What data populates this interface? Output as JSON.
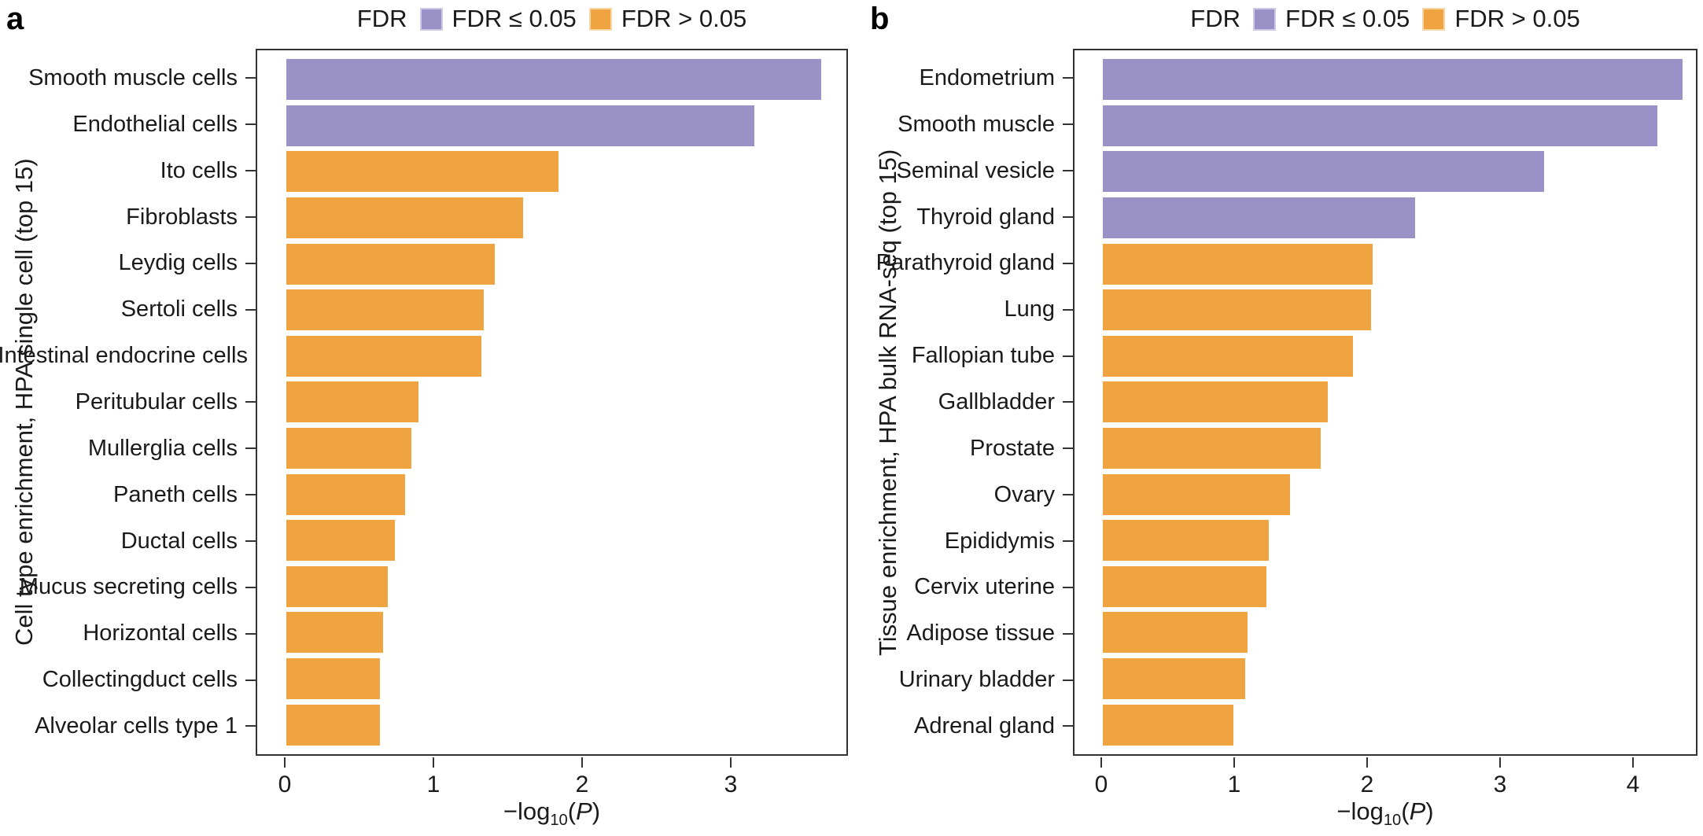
{
  "figure": {
    "legend": {
      "title": "FDR",
      "items": [
        {
          "label": "FDR ≤ 0.05",
          "color": "#9A91C7"
        },
        {
          "label": "FDR > 0.05",
          "color": "#F0A441"
        }
      ]
    },
    "x_axis_label": {
      "base": "−log",
      "sub": "10",
      "open": "(",
      "var": "P",
      "close": ")"
    }
  },
  "chart_data": [
    {
      "type": "bar",
      "orientation": "horizontal",
      "panel_letter": "a",
      "ylabel": "Cell type enrichment, HPA single cell (top 15)",
      "xlabel": "−log10(P)",
      "categories": [
        "Smooth muscle cells",
        "Endothelial cells",
        "Ito cells",
        "Fibroblasts",
        "Leydig cells",
        "Sertoli cells",
        "Intestinal endocrine cells",
        "Peritubular cells",
        "Mullerglia cells",
        "Paneth cells",
        "Ductal cells",
        "Mucus secreting cells",
        "Horizontal cells",
        "Collectingduct cells",
        "Alveolar cells type 1"
      ],
      "values": [
        3.6,
        3.15,
        1.83,
        1.59,
        1.4,
        1.33,
        1.31,
        0.89,
        0.84,
        0.8,
        0.73,
        0.68,
        0.65,
        0.63,
        0.63
      ],
      "fdr_significant": [
        true,
        true,
        false,
        false,
        false,
        false,
        false,
        false,
        false,
        false,
        false,
        false,
        false,
        false,
        false
      ],
      "x_ticks": [
        0,
        1,
        2,
        3
      ],
      "xlim": [
        0,
        3.8
      ],
      "legend_entries": [
        "FDR ≤ 0.05",
        "FDR > 0.05"
      ],
      "legend_position": "top",
      "grid": false
    },
    {
      "type": "bar",
      "orientation": "horizontal",
      "panel_letter": "b",
      "ylabel": "Tissue enrichment, HPA bulk RNA-seq (top 15)",
      "xlabel": "−log10(P)",
      "categories": [
        "Endometrium",
        "Smooth muscle",
        "Seminal vesicle",
        "Thyroid gland",
        "Parathyroid gland",
        "Lung",
        "Fallopian tube",
        "Gallbladder",
        "Prostate",
        "Ovary",
        "Epididymis",
        "Cervix uterine",
        "Adipose tissue",
        "Urinary bladder",
        "Adrenal gland"
      ],
      "values": [
        4.36,
        4.17,
        3.32,
        2.35,
        2.03,
        2.02,
        1.88,
        1.69,
        1.64,
        1.41,
        1.25,
        1.23,
        1.09,
        1.07,
        0.98
      ],
      "fdr_significant": [
        true,
        true,
        true,
        true,
        false,
        false,
        false,
        false,
        false,
        false,
        false,
        false,
        false,
        false,
        false
      ],
      "x_ticks": [
        0,
        1,
        2,
        3,
        4
      ],
      "xlim": [
        0,
        4.5
      ],
      "legend_entries": [
        "FDR ≤ 0.05",
        "FDR > 0.05"
      ],
      "legend_position": "top",
      "grid": false
    }
  ]
}
